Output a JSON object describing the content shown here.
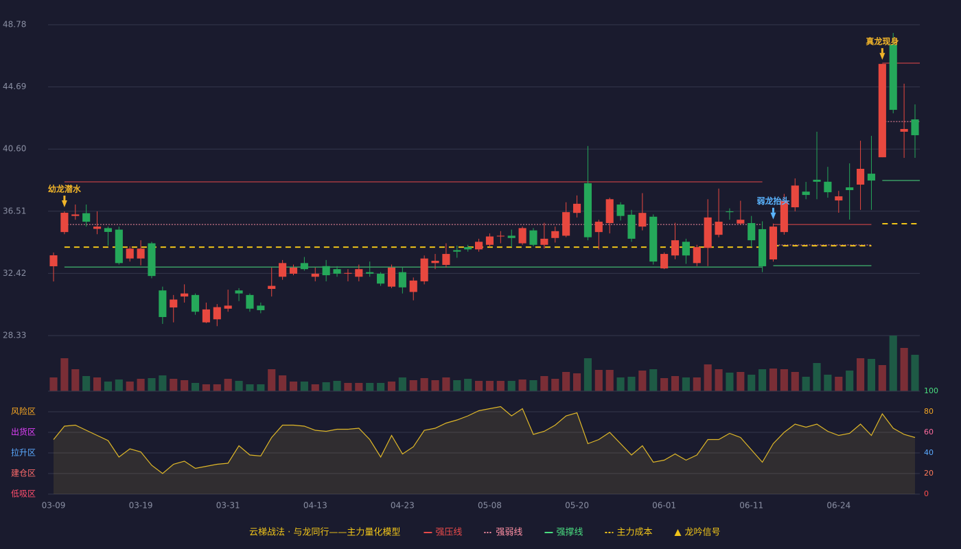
{
  "chart_data": [
    {
      "type": "candlestick",
      "categories": [
        "03-09",
        null,
        null,
        null,
        null,
        null,
        null,
        null,
        "03-19",
        null,
        null,
        null,
        null,
        null,
        null,
        null,
        "03-31",
        null,
        null,
        null,
        null,
        null,
        null,
        null,
        "04-13",
        null,
        null,
        null,
        null,
        null,
        null,
        null,
        "04-23",
        null,
        null,
        null,
        null,
        null,
        null,
        null,
        "05-08",
        null,
        null,
        null,
        null,
        null,
        null,
        null,
        "05-20",
        null,
        null,
        null,
        null,
        null,
        null,
        null,
        "06-01",
        null,
        null,
        null,
        null,
        null,
        null,
        null,
        "06-11",
        null,
        null,
        null,
        null,
        null,
        null,
        null,
        "06-24",
        null,
        null,
        null,
        null,
        null,
        null,
        null
      ],
      "open": [
        32.89,
        35.14,
        36.2,
        36.38,
        35.35,
        35.4,
        35.3,
        33.4,
        33.4,
        34.4,
        31.3,
        30.18,
        30.9,
        31.0,
        29.2,
        29.4,
        30.1,
        31.3,
        31.0,
        30.3,
        31.4,
        32.2,
        32.4,
        33.1,
        32.2,
        32.9,
        32.7,
        32.4,
        32.2,
        32.5,
        32.4,
        31.55,
        32.5,
        31.2,
        31.9,
        33.1,
        32.98,
        33.95,
        34.15,
        34.0,
        34.3,
        34.85,
        34.9,
        34.4,
        35.25,
        34.3,
        34.75,
        34.9,
        36.4,
        38.35,
        35.14,
        35.73,
        36.95,
        36.28,
        35.5,
        36.15,
        32.75,
        33.6,
        34.5,
        33.1,
        34.1,
        34.96,
        36.5,
        35.7,
        35.73,
        35.33,
        33.34,
        35.14,
        36.77,
        37.8,
        38.58,
        38.45,
        37.22,
        38.08,
        38.26,
        38.98,
        40.06,
        47.47,
        41.74,
        42.55
      ],
      "close": [
        33.61,
        36.41,
        36.3,
        35.82,
        35.5,
        35.15,
        33.1,
        34.05,
        34.05,
        32.25,
        29.55,
        30.7,
        31.1,
        29.9,
        30.05,
        30.2,
        30.3,
        31.1,
        30.1,
        30.0,
        31.6,
        33.1,
        32.8,
        32.7,
        32.4,
        32.3,
        32.4,
        32.45,
        32.7,
        32.4,
        31.75,
        32.8,
        31.5,
        31.95,
        33.4,
        33.25,
        33.7,
        33.85,
        34.0,
        34.5,
        34.85,
        34.9,
        34.75,
        35.4,
        34.3,
        34.7,
        35.2,
        36.45,
        37.0,
        34.8,
        35.82,
        37.3,
        36.2,
        34.7,
        36.4,
        33.2,
        33.7,
        34.6,
        33.6,
        34.15,
        36.1,
        35.82,
        36.45,
        35.95,
        34.6,
        32.89,
        35.5,
        37.2,
        38.2,
        37.58,
        38.45,
        37.76,
        37.49,
        37.9,
        39.3,
        38.53,
        46.2,
        43.18,
        41.92,
        41.51
      ],
      "high": [
        33.79,
        36.5,
        36.95,
        36.95,
        36.5,
        35.5,
        35.5,
        34.2,
        34.6,
        34.5,
        31.55,
        31.0,
        31.7,
        31.1,
        30.5,
        30.4,
        31.35,
        31.45,
        31.1,
        30.5,
        32.8,
        33.3,
        33.0,
        33.5,
        32.8,
        33.3,
        32.9,
        32.7,
        33.0,
        33.2,
        32.5,
        33.0,
        32.8,
        32.15,
        33.6,
        33.7,
        34.4,
        34.25,
        34.3,
        34.7,
        35.05,
        35.2,
        35.3,
        35.5,
        35.4,
        35.75,
        35.5,
        37.1,
        37.55,
        40.8,
        35.95,
        37.4,
        37.1,
        36.6,
        37.7,
        36.3,
        33.8,
        35.75,
        34.7,
        34.3,
        37.3,
        38.0,
        36.7,
        37.2,
        36.2,
        35.85,
        35.7,
        37.65,
        38.67,
        38.44,
        41.74,
        39.43,
        37.85,
        39.66,
        41.15,
        41.47,
        46.2,
        48.24,
        44.9,
        43.54
      ],
      "low": [
        31.89,
        35.0,
        35.95,
        35.5,
        35.0,
        34.25,
        33.0,
        33.2,
        32.95,
        32.1,
        29.1,
        29.2,
        30.5,
        29.7,
        29.15,
        28.95,
        29.9,
        30.6,
        29.9,
        29.8,
        30.9,
        32.0,
        32.3,
        32.6,
        31.9,
        31.9,
        32.2,
        31.9,
        31.9,
        32.2,
        31.6,
        31.45,
        31.1,
        30.65,
        31.7,
        32.7,
        32.8,
        33.45,
        33.85,
        33.85,
        34.15,
        34.4,
        34.15,
        34.3,
        34.2,
        34.05,
        34.45,
        34.8,
        36.1,
        34.6,
        34.0,
        35.05,
        35.9,
        34.5,
        35.25,
        33.0,
        32.7,
        33.35,
        33.05,
        32.9,
        32.9,
        34.8,
        35.95,
        35.6,
        34.15,
        32.5,
        33.2,
        34.97,
        36.5,
        37.3,
        37.3,
        37.4,
        36.41,
        35.96,
        36.6,
        36.6,
        40.06,
        42.95,
        40.02,
        40.02
      ],
      "up_color": "#e8483f",
      "down_color": "#25a85a",
      "ylim": [
        28.33,
        48.78
      ],
      "yticks": [
        28.33,
        32.42,
        36.51,
        {
          "value": 40.6,
          "label": "40.60"
        },
        44.69,
        48.78
      ],
      "grid": true,
      "lines": [
        {
          "name": "强压线",
          "color": "#e84a4a",
          "style": "solid",
          "segments": [
            {
              "from": 1,
              "to": 65,
              "value": 38.44
            },
            {
              "from": 66,
              "to": 75,
              "value": 35.64
            },
            {
              "from": 76,
              "to": 79,
              "value": 46.25
            }
          ]
        },
        {
          "name": "强弱线",
          "color": "#ff8fa3",
          "style": "dotted",
          "segments": [
            {
              "from": 1,
              "to": 65,
              "value": 35.64
            },
            {
              "from": 66,
              "to": 75,
              "value": 34.29
            },
            {
              "from": 76,
              "to": 79,
              "value": 42.41
            }
          ]
        },
        {
          "name": "强撑线",
          "color": "#4ade80",
          "style": "solid",
          "segments": [
            {
              "from": 1,
              "to": 65,
              "value": 32.84
            },
            {
              "from": 66,
              "to": 75,
              "value": 32.93
            },
            {
              "from": 76,
              "to": 79,
              "value": 38.53
            }
          ]
        },
        {
          "name": "主力成本",
          "color": "#f0c419",
          "style": "dashed",
          "segments": [
            {
              "from": 1,
              "to": 65,
              "value": 34.15
            },
            {
              "from": 66,
              "to": 75,
              "value": 34.24
            },
            {
              "from": 76,
              "to": 79,
              "value": 35.69
            }
          ]
        }
      ],
      "annotations": [
        {
          "text": "幼龙潜水",
          "index": 1,
          "color": "#f0b429"
        },
        {
          "text": "弱龙抬头",
          "index": 66,
          "color": "#5ab4ff"
        },
        {
          "text": "真龙现身",
          "index": 76,
          "color": "#f0b429"
        }
      ]
    },
    {
      "type": "volume",
      "values": [
        20,
        48,
        32,
        22,
        20,
        14,
        17,
        14,
        18,
        19,
        23,
        18,
        16,
        12,
        10,
        10,
        18,
        15,
        10,
        10,
        32,
        23,
        14,
        14,
        10,
        13,
        15,
        12,
        12,
        12,
        12,
        14,
        20,
        16,
        19,
        16,
        20,
        16,
        18,
        15,
        15,
        15,
        15,
        17,
        16,
        22,
        18,
        28,
        26,
        48,
        31,
        31,
        20,
        21,
        30,
        32,
        19,
        22,
        20,
        20,
        39,
        32,
        27,
        28,
        24,
        32,
        33,
        32,
        28,
        21,
        41,
        24,
        21,
        30,
        48,
        47,
        38,
        81,
        63,
        53
      ],
      "up_color": "#7a2e36",
      "down_color": "#1e5a45"
    },
    {
      "type": "line",
      "values": [
        53,
        66,
        67,
        62,
        57,
        52,
        36,
        44,
        41,
        28,
        20,
        29,
        32,
        25,
        27,
        29,
        30,
        47,
        38,
        37,
        55,
        67,
        67,
        66,
        62,
        61,
        63,
        63,
        64,
        53,
        36,
        57,
        39,
        46,
        62,
        64,
        69,
        72,
        76,
        81,
        83,
        85,
        76,
        83,
        58,
        61,
        67,
        76,
        79,
        49,
        53,
        60,
        49,
        38,
        47,
        31,
        33,
        39,
        33,
        38,
        53,
        53,
        59,
        55,
        43,
        31,
        49,
        60,
        68,
        65,
        68,
        61,
        57,
        59,
        68,
        57,
        78,
        64,
        58,
        55
      ],
      "color": "#e0b828",
      "ylim": [
        0,
        100
      ],
      "yticks": [
        0,
        20,
        40,
        60,
        80,
        100
      ],
      "ytick_colors": [
        "#ff4d4d",
        "#ff7a59",
        "#5aa9ff",
        "#ff6b9d",
        "#f5a623",
        "#4ade80"
      ],
      "zones": [
        {
          "label": "风险区",
          "value": 80,
          "color": "#f5a623"
        },
        {
          "label": "出货区",
          "value": 60,
          "color": "#e040fb"
        },
        {
          "label": "拉升区",
          "value": 40,
          "color": "#5aa9ff"
        },
        {
          "label": "建仓区",
          "value": 20,
          "color": "#ff6b6b"
        },
        {
          "label": "低吸区",
          "value": 0,
          "color": "#ff4d6d"
        }
      ],
      "grid": true
    }
  ],
  "legend": {
    "title": "云梯战法 · 与龙同行——主力量化模型",
    "signal": "龙吟信号",
    "title_color": "#f0c419",
    "signal_color": "#f0c419"
  }
}
